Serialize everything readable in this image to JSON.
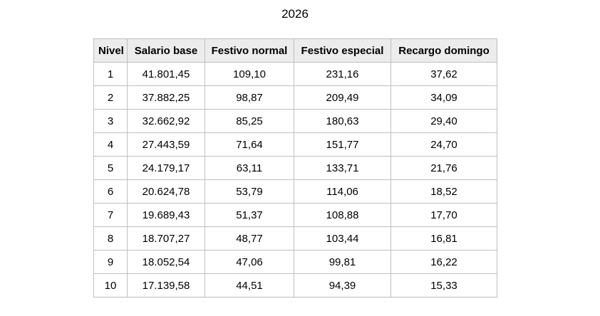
{
  "title": "2026",
  "colors": {
    "header_bg": "#ececec",
    "border": "#bfbfbf",
    "text": "#000000",
    "row_bg": "#ffffff"
  },
  "chart_data": {
    "type": "table",
    "title": "2026",
    "columns": [
      "Nivel",
      "Salario base",
      "Festivo normal",
      "Festivo especial",
      "Recargo domingo"
    ],
    "rows": [
      [
        "1",
        "41.801,45",
        "109,10",
        "231,16",
        "37,62"
      ],
      [
        "2",
        "37.882,25",
        "98,87",
        "209,49",
        "34,09"
      ],
      [
        "3",
        "32.662,92",
        "85,25",
        "180,63",
        "29,40"
      ],
      [
        "4",
        "27.443,59",
        "71,64",
        "151,77",
        "24,70"
      ],
      [
        "5",
        "24.179,17",
        "63,11",
        "133,71",
        "21,76"
      ],
      [
        "6",
        "20.624,78",
        "53,79",
        "114,06",
        "18,52"
      ],
      [
        "7",
        "19.689,43",
        "51,37",
        "108,88",
        "17,70"
      ],
      [
        "8",
        "18.707,27",
        "48,77",
        "103,44",
        "16,81"
      ],
      [
        "9",
        "18.052,54",
        "47,06",
        "99,81",
        "16,22"
      ],
      [
        "10",
        "17.139,58",
        "44,51",
        "94,39",
        "15,33"
      ]
    ]
  }
}
